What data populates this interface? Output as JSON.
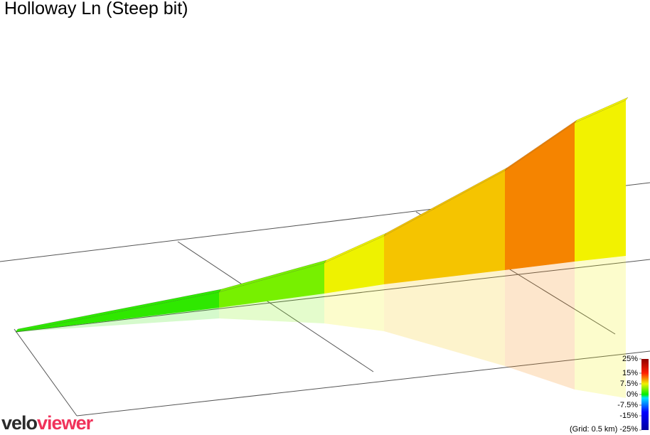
{
  "chart_data": {
    "type": "profile3d",
    "title": "Holloway Ln (Steep bit)",
    "segments": [
      {
        "color": "#2fe800",
        "value": 2
      },
      {
        "color": "#77f000",
        "value": 4
      },
      {
        "color": "#eef200",
        "value": 7
      },
      {
        "color": "#f5c400",
        "value": 9
      },
      {
        "color": "#f58400",
        "value": 12
      },
      {
        "color": "#f2f200",
        "value": 7
      }
    ],
    "legend_ticks": [
      {
        "value": 25,
        "label": "25%"
      },
      {
        "value": 15,
        "label": "15%"
      },
      {
        "value": 7.5,
        "label": "7.5%"
      },
      {
        "value": 0,
        "label": "0%"
      },
      {
        "value": -7.5,
        "label": "-7.5%"
      },
      {
        "value": -15,
        "label": "-15%"
      },
      {
        "value": -25,
        "label": "-25%"
      }
    ],
    "grid_note": "(Grid: 0.5 km)",
    "logo": [
      "velo",
      "viewer"
    ]
  }
}
